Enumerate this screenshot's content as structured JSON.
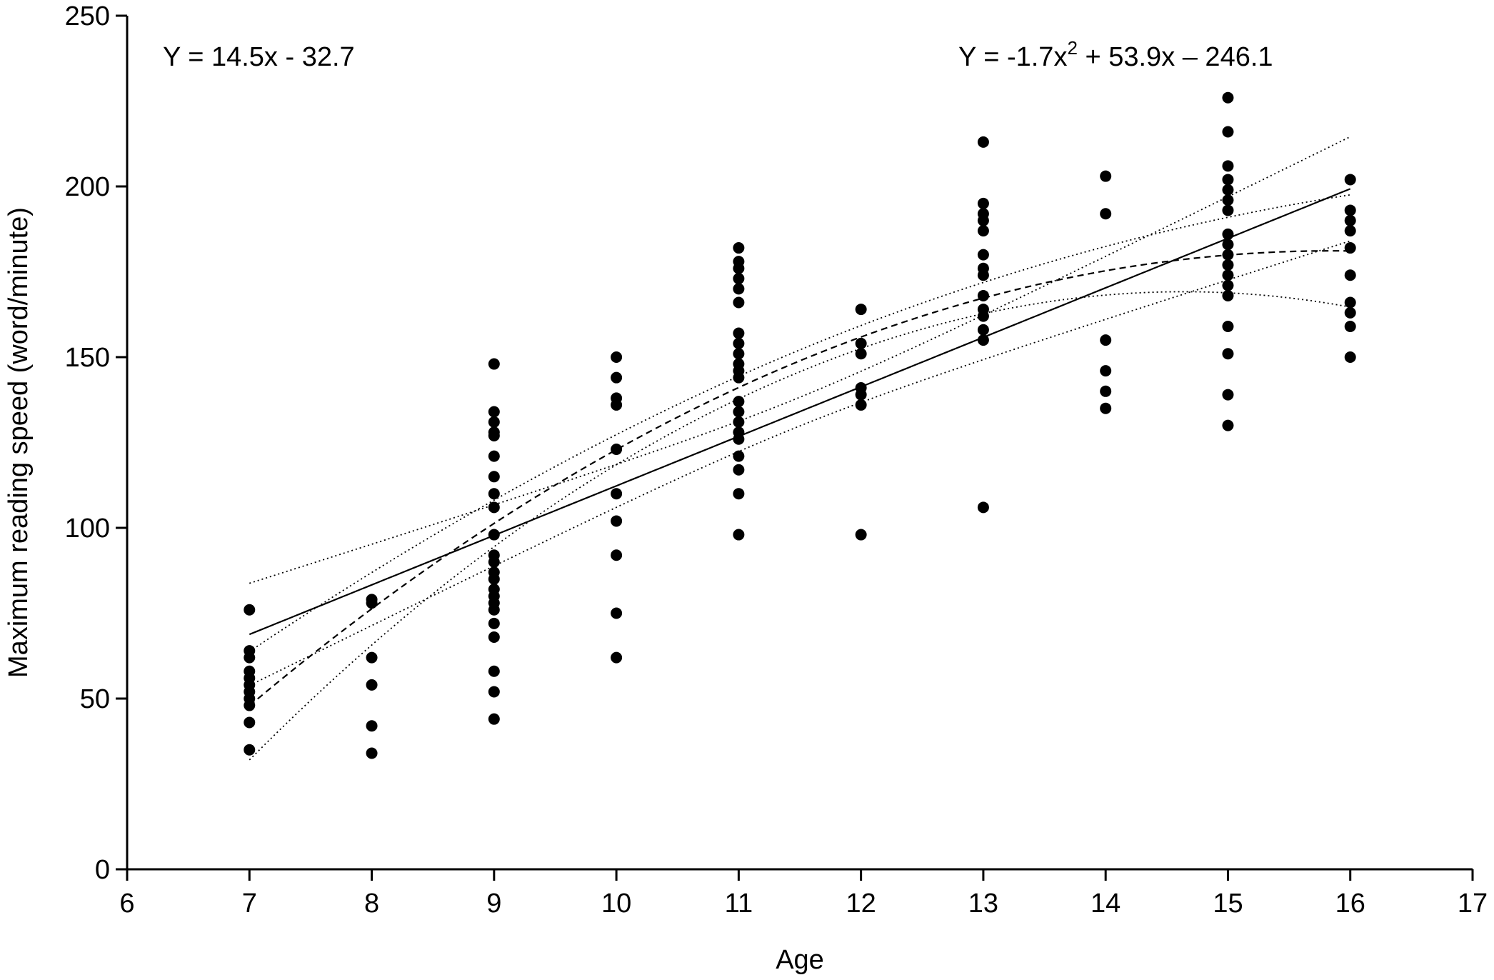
{
  "chart_data": {
    "type": "scatter",
    "title": "",
    "xlabel": "Age",
    "ylabel": "Maximum reading speed (word/minute)",
    "xlim": [
      6,
      17
    ],
    "ylim": [
      0,
      250
    ],
    "xticks": [
      6,
      7,
      8,
      9,
      10,
      11,
      12,
      13,
      14,
      15,
      16,
      17
    ],
    "yticks": [
      0,
      50,
      100,
      150,
      200,
      250
    ],
    "grid": false,
    "annotations": {
      "linear_equation": "Y = 14.5x - 32.7",
      "quadratic_equation_prefix": "Y = -1.7x",
      "quadratic_equation_exponent": "2",
      "quadratic_equation_suffix": " + 53.9x – 246.1"
    },
    "fits": {
      "linear": {
        "slope": 14.5,
        "intercept": -32.7,
        "x_range": [
          7,
          16
        ]
      },
      "quadratic": {
        "a": -1.7,
        "b": 53.9,
        "c": -246.1,
        "x_range": [
          7,
          16
        ]
      }
    },
    "points": [
      {
        "x": 7,
        "y": 76
      },
      {
        "x": 7,
        "y": 64
      },
      {
        "x": 7,
        "y": 62
      },
      {
        "x": 7,
        "y": 58
      },
      {
        "x": 7,
        "y": 56
      },
      {
        "x": 7,
        "y": 54
      },
      {
        "x": 7,
        "y": 52
      },
      {
        "x": 7,
        "y": 50
      },
      {
        "x": 7,
        "y": 48
      },
      {
        "x": 7,
        "y": 43
      },
      {
        "x": 7,
        "y": 35
      },
      {
        "x": 8,
        "y": 79
      },
      {
        "x": 8,
        "y": 78
      },
      {
        "x": 8,
        "y": 62
      },
      {
        "x": 8,
        "y": 54
      },
      {
        "x": 8,
        "y": 42
      },
      {
        "x": 8,
        "y": 34
      },
      {
        "x": 9,
        "y": 148
      },
      {
        "x": 9,
        "y": 134
      },
      {
        "x": 9,
        "y": 131
      },
      {
        "x": 9,
        "y": 128
      },
      {
        "x": 9,
        "y": 127
      },
      {
        "x": 9,
        "y": 121
      },
      {
        "x": 9,
        "y": 115
      },
      {
        "x": 9,
        "y": 110
      },
      {
        "x": 9,
        "y": 106
      },
      {
        "x": 9,
        "y": 98
      },
      {
        "x": 9,
        "y": 92
      },
      {
        "x": 9,
        "y": 90
      },
      {
        "x": 9,
        "y": 87
      },
      {
        "x": 9,
        "y": 85
      },
      {
        "x": 9,
        "y": 82
      },
      {
        "x": 9,
        "y": 80
      },
      {
        "x": 9,
        "y": 78
      },
      {
        "x": 9,
        "y": 76
      },
      {
        "x": 9,
        "y": 72
      },
      {
        "x": 9,
        "y": 68
      },
      {
        "x": 9,
        "y": 58
      },
      {
        "x": 9,
        "y": 52
      },
      {
        "x": 9,
        "y": 44
      },
      {
        "x": 10,
        "y": 150
      },
      {
        "x": 10,
        "y": 144
      },
      {
        "x": 10,
        "y": 138
      },
      {
        "x": 10,
        "y": 136
      },
      {
        "x": 10,
        "y": 123
      },
      {
        "x": 10,
        "y": 110
      },
      {
        "x": 10,
        "y": 102
      },
      {
        "x": 10,
        "y": 92
      },
      {
        "x": 10,
        "y": 75
      },
      {
        "x": 10,
        "y": 62
      },
      {
        "x": 11,
        "y": 182
      },
      {
        "x": 11,
        "y": 178
      },
      {
        "x": 11,
        "y": 176
      },
      {
        "x": 11,
        "y": 173
      },
      {
        "x": 11,
        "y": 170
      },
      {
        "x": 11,
        "y": 166
      },
      {
        "x": 11,
        "y": 157
      },
      {
        "x": 11,
        "y": 154
      },
      {
        "x": 11,
        "y": 151
      },
      {
        "x": 11,
        "y": 148
      },
      {
        "x": 11,
        "y": 146
      },
      {
        "x": 11,
        "y": 144
      },
      {
        "x": 11,
        "y": 137
      },
      {
        "x": 11,
        "y": 134
      },
      {
        "x": 11,
        "y": 131
      },
      {
        "x": 11,
        "y": 128
      },
      {
        "x": 11,
        "y": 126
      },
      {
        "x": 11,
        "y": 121
      },
      {
        "x": 11,
        "y": 117
      },
      {
        "x": 11,
        "y": 110
      },
      {
        "x": 11,
        "y": 98
      },
      {
        "x": 12,
        "y": 164
      },
      {
        "x": 12,
        "y": 154
      },
      {
        "x": 12,
        "y": 151
      },
      {
        "x": 12,
        "y": 141
      },
      {
        "x": 12,
        "y": 139
      },
      {
        "x": 12,
        "y": 136
      },
      {
        "x": 12,
        "y": 98
      },
      {
        "x": 13,
        "y": 213
      },
      {
        "x": 13,
        "y": 195
      },
      {
        "x": 13,
        "y": 192
      },
      {
        "x": 13,
        "y": 190
      },
      {
        "x": 13,
        "y": 187
      },
      {
        "x": 13,
        "y": 180
      },
      {
        "x": 13,
        "y": 176
      },
      {
        "x": 13,
        "y": 174
      },
      {
        "x": 13,
        "y": 168
      },
      {
        "x": 13,
        "y": 164
      },
      {
        "x": 13,
        "y": 162
      },
      {
        "x": 13,
        "y": 158
      },
      {
        "x": 13,
        "y": 155
      },
      {
        "x": 13,
        "y": 106
      },
      {
        "x": 14,
        "y": 203
      },
      {
        "x": 14,
        "y": 192
      },
      {
        "x": 14,
        "y": 155
      },
      {
        "x": 14,
        "y": 146
      },
      {
        "x": 14,
        "y": 140
      },
      {
        "x": 14,
        "y": 135
      },
      {
        "x": 15,
        "y": 226
      },
      {
        "x": 15,
        "y": 216
      },
      {
        "x": 15,
        "y": 206
      },
      {
        "x": 15,
        "y": 202
      },
      {
        "x": 15,
        "y": 199
      },
      {
        "x": 15,
        "y": 196
      },
      {
        "x": 15,
        "y": 193
      },
      {
        "x": 15,
        "y": 186
      },
      {
        "x": 15,
        "y": 183
      },
      {
        "x": 15,
        "y": 180
      },
      {
        "x": 15,
        "y": 177
      },
      {
        "x": 15,
        "y": 174
      },
      {
        "x": 15,
        "y": 171
      },
      {
        "x": 15,
        "y": 168
      },
      {
        "x": 15,
        "y": 159
      },
      {
        "x": 15,
        "y": 151
      },
      {
        "x": 15,
        "y": 139
      },
      {
        "x": 15,
        "y": 130
      },
      {
        "x": 16,
        "y": 202
      },
      {
        "x": 16,
        "y": 193
      },
      {
        "x": 16,
        "y": 190
      },
      {
        "x": 16,
        "y": 187
      },
      {
        "x": 16,
        "y": 182
      },
      {
        "x": 16,
        "y": 174
      },
      {
        "x": 16,
        "y": 166
      },
      {
        "x": 16,
        "y": 163
      },
      {
        "x": 16,
        "y": 159
      },
      {
        "x": 16,
        "y": 150
      }
    ]
  }
}
